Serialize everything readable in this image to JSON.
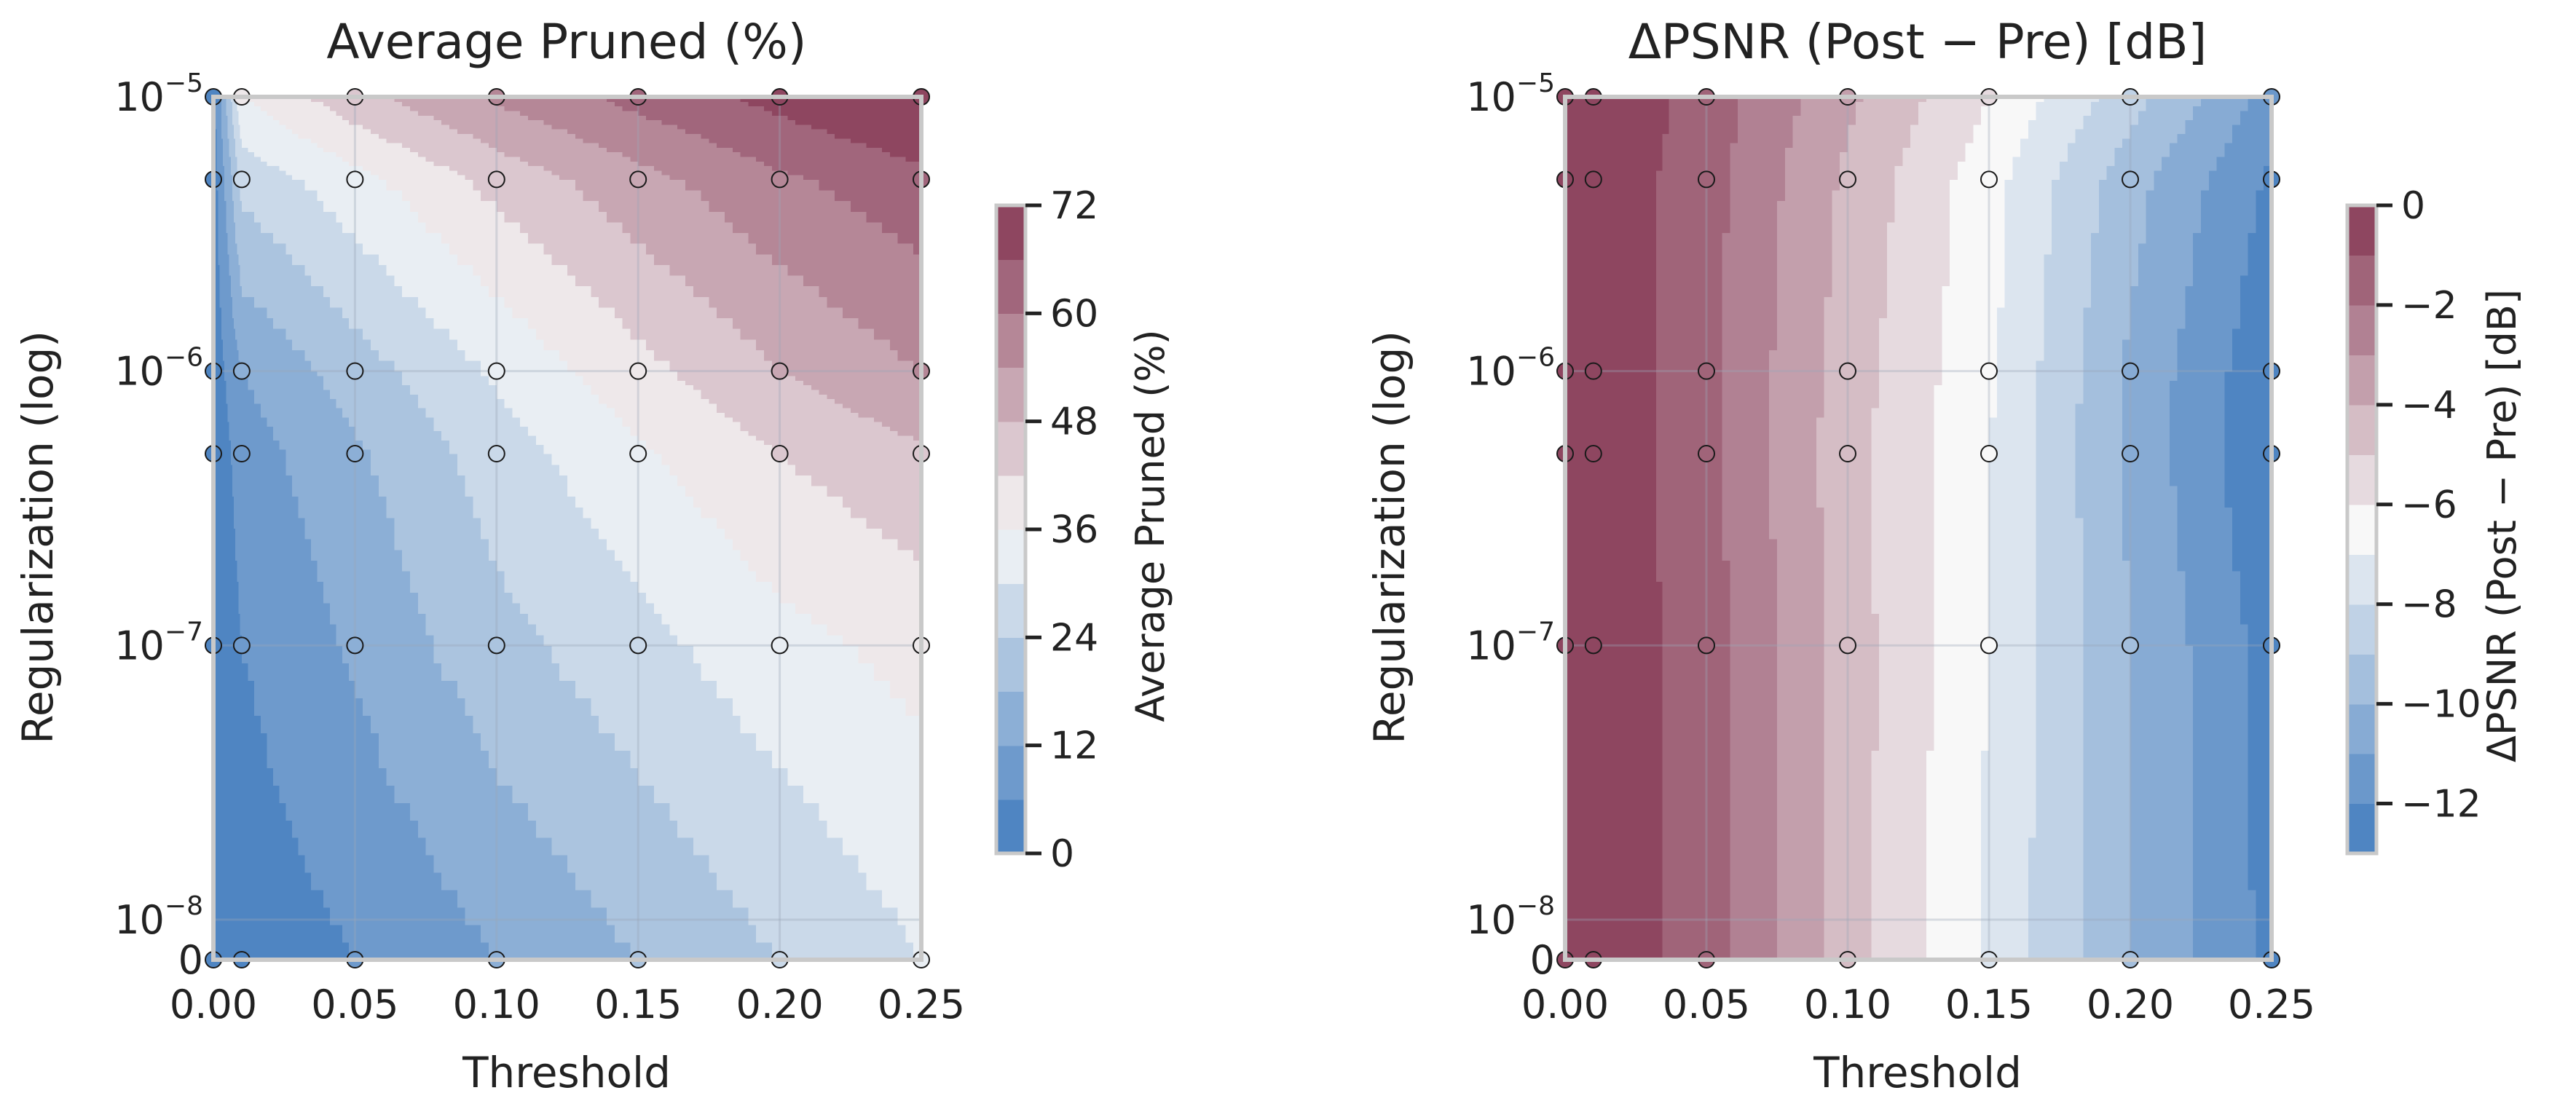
{
  "figure": {
    "colors": {
      "low": "#4f85c2",
      "mid": "#f8f8f8",
      "high": "#8e4660",
      "frame": "#c9c9c9",
      "grid": "#9aa6b6",
      "text": "#222222"
    }
  },
  "chart_data": [
    {
      "type": "heatmap",
      "title": "Average Pruned (%)",
      "xlabel": "Threshold",
      "ylabel": "Regularization (log)",
      "xlim": [
        0,
        0.25
      ],
      "x_ticks": [
        "0.00",
        "0.05",
        "0.10",
        "0.15",
        "0.20",
        "0.25"
      ],
      "y_ticks": [
        {
          "value": "1e-5",
          "base": "10",
          "exp": "−5"
        },
        {
          "value": "1e-6",
          "base": "10",
          "exp": "−6"
        },
        {
          "value": "1e-7",
          "base": "10",
          "exp": "−7"
        },
        {
          "value": "1e-8",
          "base": "10",
          "exp": "−8"
        },
        {
          "value": "0",
          "base": "0",
          "exp": ""
        }
      ],
      "x": [
        0,
        0.01,
        0.05,
        0.1,
        0.15,
        0.2,
        0.25
      ],
      "y": [
        0,
        1e-07,
        5e-07,
        1e-06,
        5e-06,
        1e-05
      ],
      "z": [
        [
          0,
          2,
          6,
          12,
          18,
          24,
          30
        ],
        [
          0,
          6,
          13,
          22,
          28,
          34,
          38
        ],
        [
          1,
          9,
          17,
          27,
          35,
          42,
          47
        ],
        [
          2,
          12,
          21,
          31,
          40,
          48,
          54
        ],
        [
          3,
          26,
          34,
          44,
          52,
          59,
          64
        ],
        [
          4,
          36,
          46,
          55,
          62,
          68,
          74
        ]
      ],
      "levels": [
        0,
        6,
        12,
        18,
        24,
        30,
        36,
        42,
        48,
        54,
        60,
        66,
        72
      ],
      "colorbar": {
        "label": "Average Pruned (%)",
        "ticks": [
          "0",
          "12",
          "24",
          "36",
          "48",
          "60",
          "72"
        ]
      }
    },
    {
      "type": "heatmap",
      "title": "ΔPSNR (Post − Pre) [dB]",
      "xlabel": "Threshold",
      "ylabel": "Regularization (log)",
      "xlim": [
        0,
        0.25
      ],
      "x_ticks": [
        "0.00",
        "0.05",
        "0.10",
        "0.15",
        "0.20",
        "0.25"
      ],
      "y_ticks": [
        {
          "value": "1e-5",
          "base": "10",
          "exp": "−5"
        },
        {
          "value": "1e-6",
          "base": "10",
          "exp": "−6"
        },
        {
          "value": "1e-7",
          "base": "10",
          "exp": "−7"
        },
        {
          "value": "1e-8",
          "base": "10",
          "exp": "−8"
        },
        {
          "value": "0",
          "base": "0",
          "exp": ""
        }
      ],
      "x": [
        0,
        0.01,
        0.05,
        0.1,
        0.15,
        0.2,
        0.25
      ],
      "y": [
        0,
        1e-07,
        5e-07,
        1e-06,
        5e-06,
        1e-05
      ],
      "z": [
        [
          0,
          -0.2,
          -1.5,
          -4.5,
          -7.2,
          -10.0,
          -12.3
        ],
        [
          0,
          -0.2,
          -1.5,
          -4.5,
          -7.0,
          -10.0,
          -12.4
        ],
        [
          0,
          -0.2,
          -1.7,
          -4.6,
          -7.0,
          -10.2,
          -13.0
        ],
        [
          0,
          -0.2,
          -1.7,
          -4.5,
          -6.8,
          -10.2,
          -12.8
        ],
        [
          0,
          -0.2,
          -1.6,
          -4.2,
          -6.6,
          -9.6,
          -12.2
        ],
        [
          0,
          -0.1,
          -1.4,
          -3.8,
          -6.0,
          -8.6,
          -11.4
        ]
      ],
      "levels": [
        -13,
        -12,
        -11,
        -10,
        -9,
        -8,
        -7,
        -6,
        -5,
        -4,
        -3,
        -2,
        -1,
        0
      ],
      "colorbar": {
        "label": "ΔPSNR (Post − Pre) [dB]",
        "ticks": [
          "0",
          "−2",
          "−4",
          "−6",
          "−8",
          "−10",
          "−12"
        ]
      }
    }
  ]
}
